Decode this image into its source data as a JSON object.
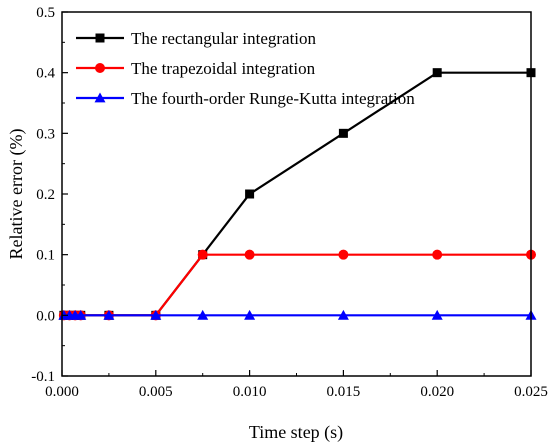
{
  "chart_data": {
    "type": "line",
    "xlabel": "Time step (s)",
    "ylabel": "Relative error (%)",
    "xlim": [
      0.0,
      0.025
    ],
    "ylim": [
      -0.1,
      0.5
    ],
    "x_ticks": [
      "0.000",
      "0.005",
      "0.010",
      "0.015",
      "0.020",
      "0.025"
    ],
    "y_ticks": [
      "-0.1",
      "0.0",
      "0.1",
      "0.2",
      "0.3",
      "0.4",
      "0.5"
    ],
    "grid": false,
    "legend_position": "top-left",
    "x": [
      0.0001,
      0.0004,
      0.0007,
      0.001,
      0.0025,
      0.005,
      0.0075,
      0.01,
      0.015,
      0.02,
      0.025
    ],
    "series": [
      {
        "name": "The rectangular integration",
        "color": "#000000",
        "marker": "square",
        "values": [
          0.0,
          0.0,
          0.0,
          0.0,
          0.0,
          0.0,
          0.1,
          0.2,
          0.3,
          0.4,
          0.4
        ]
      },
      {
        "name": "The trapezoidal integration",
        "color": "#ff0000",
        "marker": "circle",
        "values": [
          0.0,
          0.0,
          0.0,
          0.0,
          0.0,
          0.0,
          0.1,
          0.1,
          0.1,
          0.1,
          0.1
        ]
      },
      {
        "name": "The fourth-order  Runge-Kutta integration",
        "color": "#0000ff",
        "marker": "triangle",
        "values": [
          0.0,
          0.0,
          0.0,
          0.0,
          0.0,
          0.0,
          0.0,
          0.0,
          0.0,
          0.0,
          0.0
        ]
      }
    ]
  }
}
